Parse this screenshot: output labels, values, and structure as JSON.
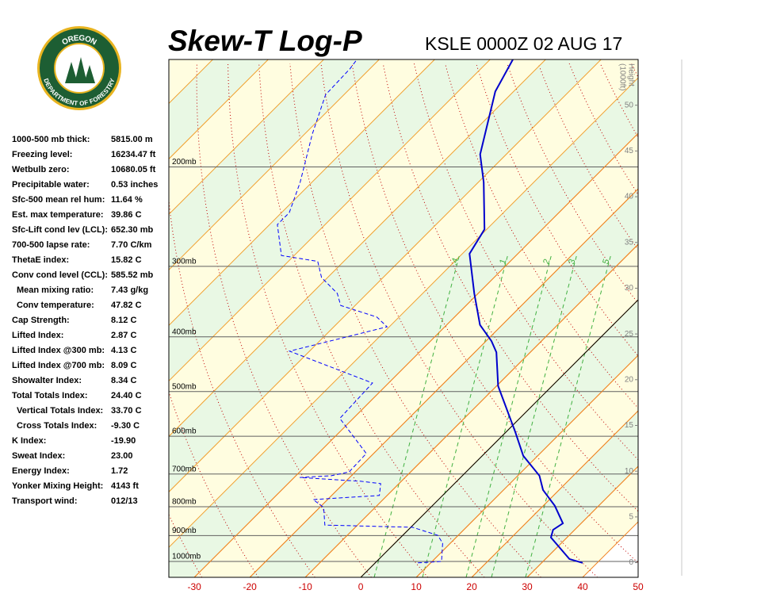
{
  "logo": {
    "top": "OREGON",
    "bottom": "DEPARTMENT OF FORESTRY"
  },
  "chart_data": {
    "type": "skew-t",
    "title": "Skew-T Log-P",
    "subtitle": "KSLE 0000Z 02 AUG 17",
    "y_log": true,
    "ylim": [
      1067,
      129
    ],
    "yticks": [
      {
        "value": 1000,
        "label": "1000mb"
      },
      {
        "value": 900,
        "label": "900mb"
      },
      {
        "value": 800,
        "label": "800mb"
      },
      {
        "value": 700,
        "label": "700mb"
      },
      {
        "value": 600,
        "label": "600mb"
      },
      {
        "value": 500,
        "label": "500mb"
      },
      {
        "value": 400,
        "label": "400mb"
      },
      {
        "value": 300,
        "label": "300mb"
      },
      {
        "value": 200,
        "label": "200mb"
      }
    ],
    "xlim": [
      -34.6,
      50
    ],
    "xticks": [
      -30,
      -20,
      -10,
      0,
      10,
      20,
      30,
      40,
      50
    ],
    "y2label": [
      "Height",
      "(1000ft)"
    ],
    "y2lim": [
      -1.6,
      55
    ],
    "y2ticks": [
      0,
      5,
      10,
      15,
      20,
      25,
      30,
      35,
      40,
      45,
      50
    ],
    "mixing_ratio_labels": [
      ".4",
      "1",
      "2",
      "3",
      "5"
    ],
    "series": [
      {
        "color": "#0000cc",
        "p": [
          1006,
          990,
          907,
          879,
          856,
          797,
          747,
          705,
          650,
          590,
          489,
          426,
          407,
          381,
          335,
          285,
          258,
          213,
          190,
          147,
          129
        ],
        "values": [
          37.4,
          34.3,
          27.1,
          26.1,
          26.7,
          22.1,
          17.1,
          13.9,
          7.4,
          1.7,
          -9.7,
          -16.1,
          -19,
          -24,
          -30.7,
          -38.7,
          -40.4,
          -49,
          -54.7,
          -63.3,
          -65.9
        ]
      },
      {
        "color": "#0000ff",
        "dashed": true,
        "p": [
          1006,
          1000,
          928,
          899,
          870,
          862,
          802,
          777,
          764,
          728,
          721,
          710,
          705,
          694,
          644,
          558,
          483,
          424,
          384,
          369,
          352,
          335,
          314,
          294,
          287,
          253,
          241,
          213,
          175,
          149,
          134,
          129
        ],
        "values": [
          7.7,
          11.7,
          8.6,
          6.3,
          0.3,
          -15.9,
          -19.3,
          -22.6,
          -11.4,
          -13.3,
          -17.3,
          -29,
          -23.6,
          -21.1,
          -21.3,
          -32.4,
          -32.9,
          -53.6,
          -40.4,
          -44,
          -52.6,
          -55.4,
          -61.1,
          -64.7,
          -72.3,
          -78.6,
          -78.6,
          -82.1,
          -88.6,
          -93.3,
          -93.6,
          -94
        ]
      }
    ]
  },
  "stats": [
    {
      "label": "1000-500 mb thick:",
      "value": "5815.00 m"
    },
    {
      "label": "Freezing level:",
      "value": "16234.47 ft"
    },
    {
      "label": "Wetbulb zero:",
      "value": "10680.05 ft"
    },
    {
      "label": "Precipitable water:",
      "value": "0.53 inches"
    },
    {
      "label": "Sfc-500 mean rel hum:",
      "value": "11.64 %"
    },
    {
      "label": "Est. max temperature:",
      "value": "39.86 C"
    },
    {
      "label": "Sfc-Lift cond lev (LCL):",
      "value": "652.30 mb"
    },
    {
      "label": "700-500 lapse rate:",
      "value": "7.70 C/km"
    },
    {
      "label": "ThetaE index:",
      "value": "15.82 C"
    },
    {
      "label": "Conv cond level (CCL):",
      "value": "585.52 mb"
    },
    {
      "label": "Mean mixing ratio:",
      "value": "7.43 g/kg",
      "indent": true
    },
    {
      "label": "Conv temperature:",
      "value": "47.82 C",
      "indent": true
    },
    {
      "label": "Cap Strength:",
      "value": "8.12 C"
    },
    {
      "label": "Lifted Index:",
      "value": "2.87 C"
    },
    {
      "label": "Lifted Index @300 mb:",
      "value": "4.13 C"
    },
    {
      "label": "Lifted Index @700 mb:",
      "value": "8.09 C"
    },
    {
      "label": "Showalter Index:",
      "value": "8.34 C"
    },
    {
      "label": "Total Totals Index:",
      "value": "24.40 C"
    },
    {
      "label": "Vertical Totals Index:",
      "value": "33.70 C",
      "indent": true
    },
    {
      "label": "Cross Totals Index:",
      "value": "-9.30 C",
      "indent": true
    },
    {
      "label": "K Index:",
      "value": "-19.90"
    },
    {
      "label": "Sweat Index:",
      "value": "23.00"
    },
    {
      "label": "Energy Index:",
      "value": "1.72"
    },
    {
      "label": "Yonker Mixing Height:",
      "value": "4143 ft"
    },
    {
      "label": "Transport wind:",
      "value": "012/13"
    }
  ]
}
